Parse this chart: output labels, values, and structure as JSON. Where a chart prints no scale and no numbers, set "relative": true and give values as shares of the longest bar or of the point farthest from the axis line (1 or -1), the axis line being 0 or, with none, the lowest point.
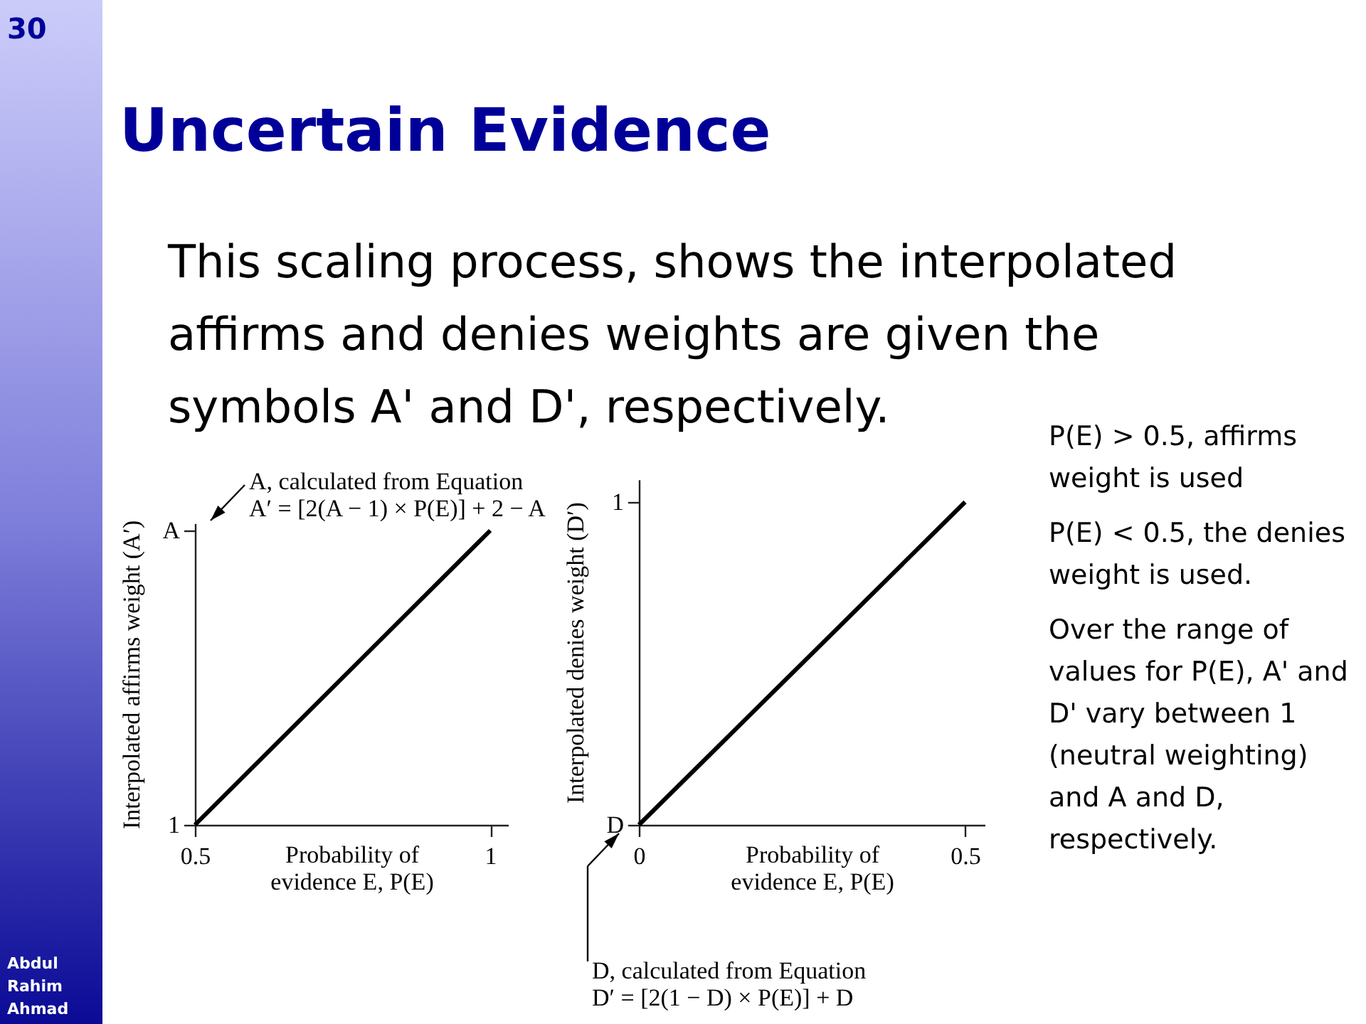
{
  "chart_data": [
    {
      "type": "other",
      "annotations": [
        "30",
        "Abdul\nRahim\nAhmad"
      ]
    },
    {
      "type": "other",
      "title": "Uncertain Evidence",
      "annotations": [
        "This scaling process, shows the interpolated\naffirms and denies weights are given the\nsymbols A' and D', respectively."
      ]
    },
    {
      "type": "line",
      "relative": true,
      "x": [
        0.5,
        1
      ],
      "values": [
        0,
        1
      ],
      "color": "#000000",
      "xlim": [
        0.5,
        1.03
      ],
      "xticks": [
        0.5,
        1
      ],
      "xlabel": "Probability of\nevidence E, P(E)",
      "ylabel": "Interpolated affirms weight (A′)",
      "annotations": [
        "1",
        "A",
        "A, calculated from Equation\nA′ = [2(A − 1) × P(E)] + 2 − A"
      ]
    },
    {
      "type": "line",
      "relative": true,
      "x": [
        0,
        0.5
      ],
      "values": [
        0,
        1
      ],
      "color": "#000000",
      "xlim": [
        0,
        0.53
      ],
      "xticks": [
        0,
        0.5
      ],
      "xlabel": "Probability of\nevidence E, P(E)",
      "ylabel": "Interpolated denies weight (D′)",
      "annotations": [
        "D",
        "1",
        "D, calculated from Equation\nD′ = [2(1 − D) × P(E)] + D"
      ]
    },
    {
      "type": "other",
      "annotations": [
        "P(E) > 0.5, affirms\nweight is used",
        "P(E) < 0.5, the denies\nweight is used.",
        "Over the range of\nvalues for P(E), A' and\nD' vary between 1\n(neutral weighting)\nand A and D,\nrespectively."
      ]
    }
  ]
}
